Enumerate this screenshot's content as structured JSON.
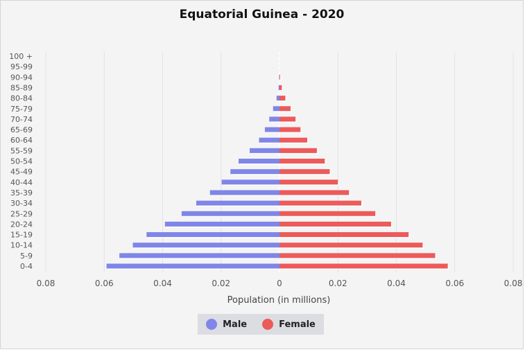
{
  "chart_data": {
    "type": "bar",
    "orientation": "horizontal-population-pyramid",
    "title": "Equatorial Guinea - 2020",
    "xlabel": "Population (in millions)",
    "ylabel": "",
    "xlim": [
      -0.08,
      0.08
    ],
    "x_ticks": [
      -0.08,
      -0.06,
      -0.04,
      -0.02,
      0,
      0.02,
      0.04,
      0.06,
      0.08
    ],
    "x_tick_labels": [
      "0.08",
      "0.06",
      "0.04",
      "0.02",
      "0",
      "0.02",
      "0.04",
      "0.06",
      "0.08"
    ],
    "grid": true,
    "legend_position": "bottom-center",
    "categories": [
      "0-4",
      "5-9",
      "10-14",
      "15-19",
      "20-24",
      "25-29",
      "30-34",
      "35-39",
      "40-44",
      "45-49",
      "50-54",
      "55-59",
      "60-64",
      "65-69",
      "70-74",
      "75-79",
      "80-84",
      "85-89",
      "90-94",
      "95-99",
      "100 +"
    ],
    "series": [
      {
        "name": "Male",
        "color": "#7f86e8",
        "values": [
          0.0592,
          0.0548,
          0.0502,
          0.0455,
          0.0392,
          0.0335,
          0.0285,
          0.0238,
          0.0198,
          0.0168,
          0.014,
          0.0102,
          0.007,
          0.005,
          0.0035,
          0.0022,
          0.001,
          0.0003,
          0.0001,
          0,
          0
        ]
      },
      {
        "name": "Female",
        "color": "#ec5a5a",
        "values": [
          0.0576,
          0.0533,
          0.049,
          0.0442,
          0.0382,
          0.0328,
          0.028,
          0.0238,
          0.02,
          0.0172,
          0.0155,
          0.0128,
          0.0095,
          0.0072,
          0.0055,
          0.0038,
          0.002,
          0.0008,
          0.0002,
          0,
          0
        ]
      }
    ]
  }
}
